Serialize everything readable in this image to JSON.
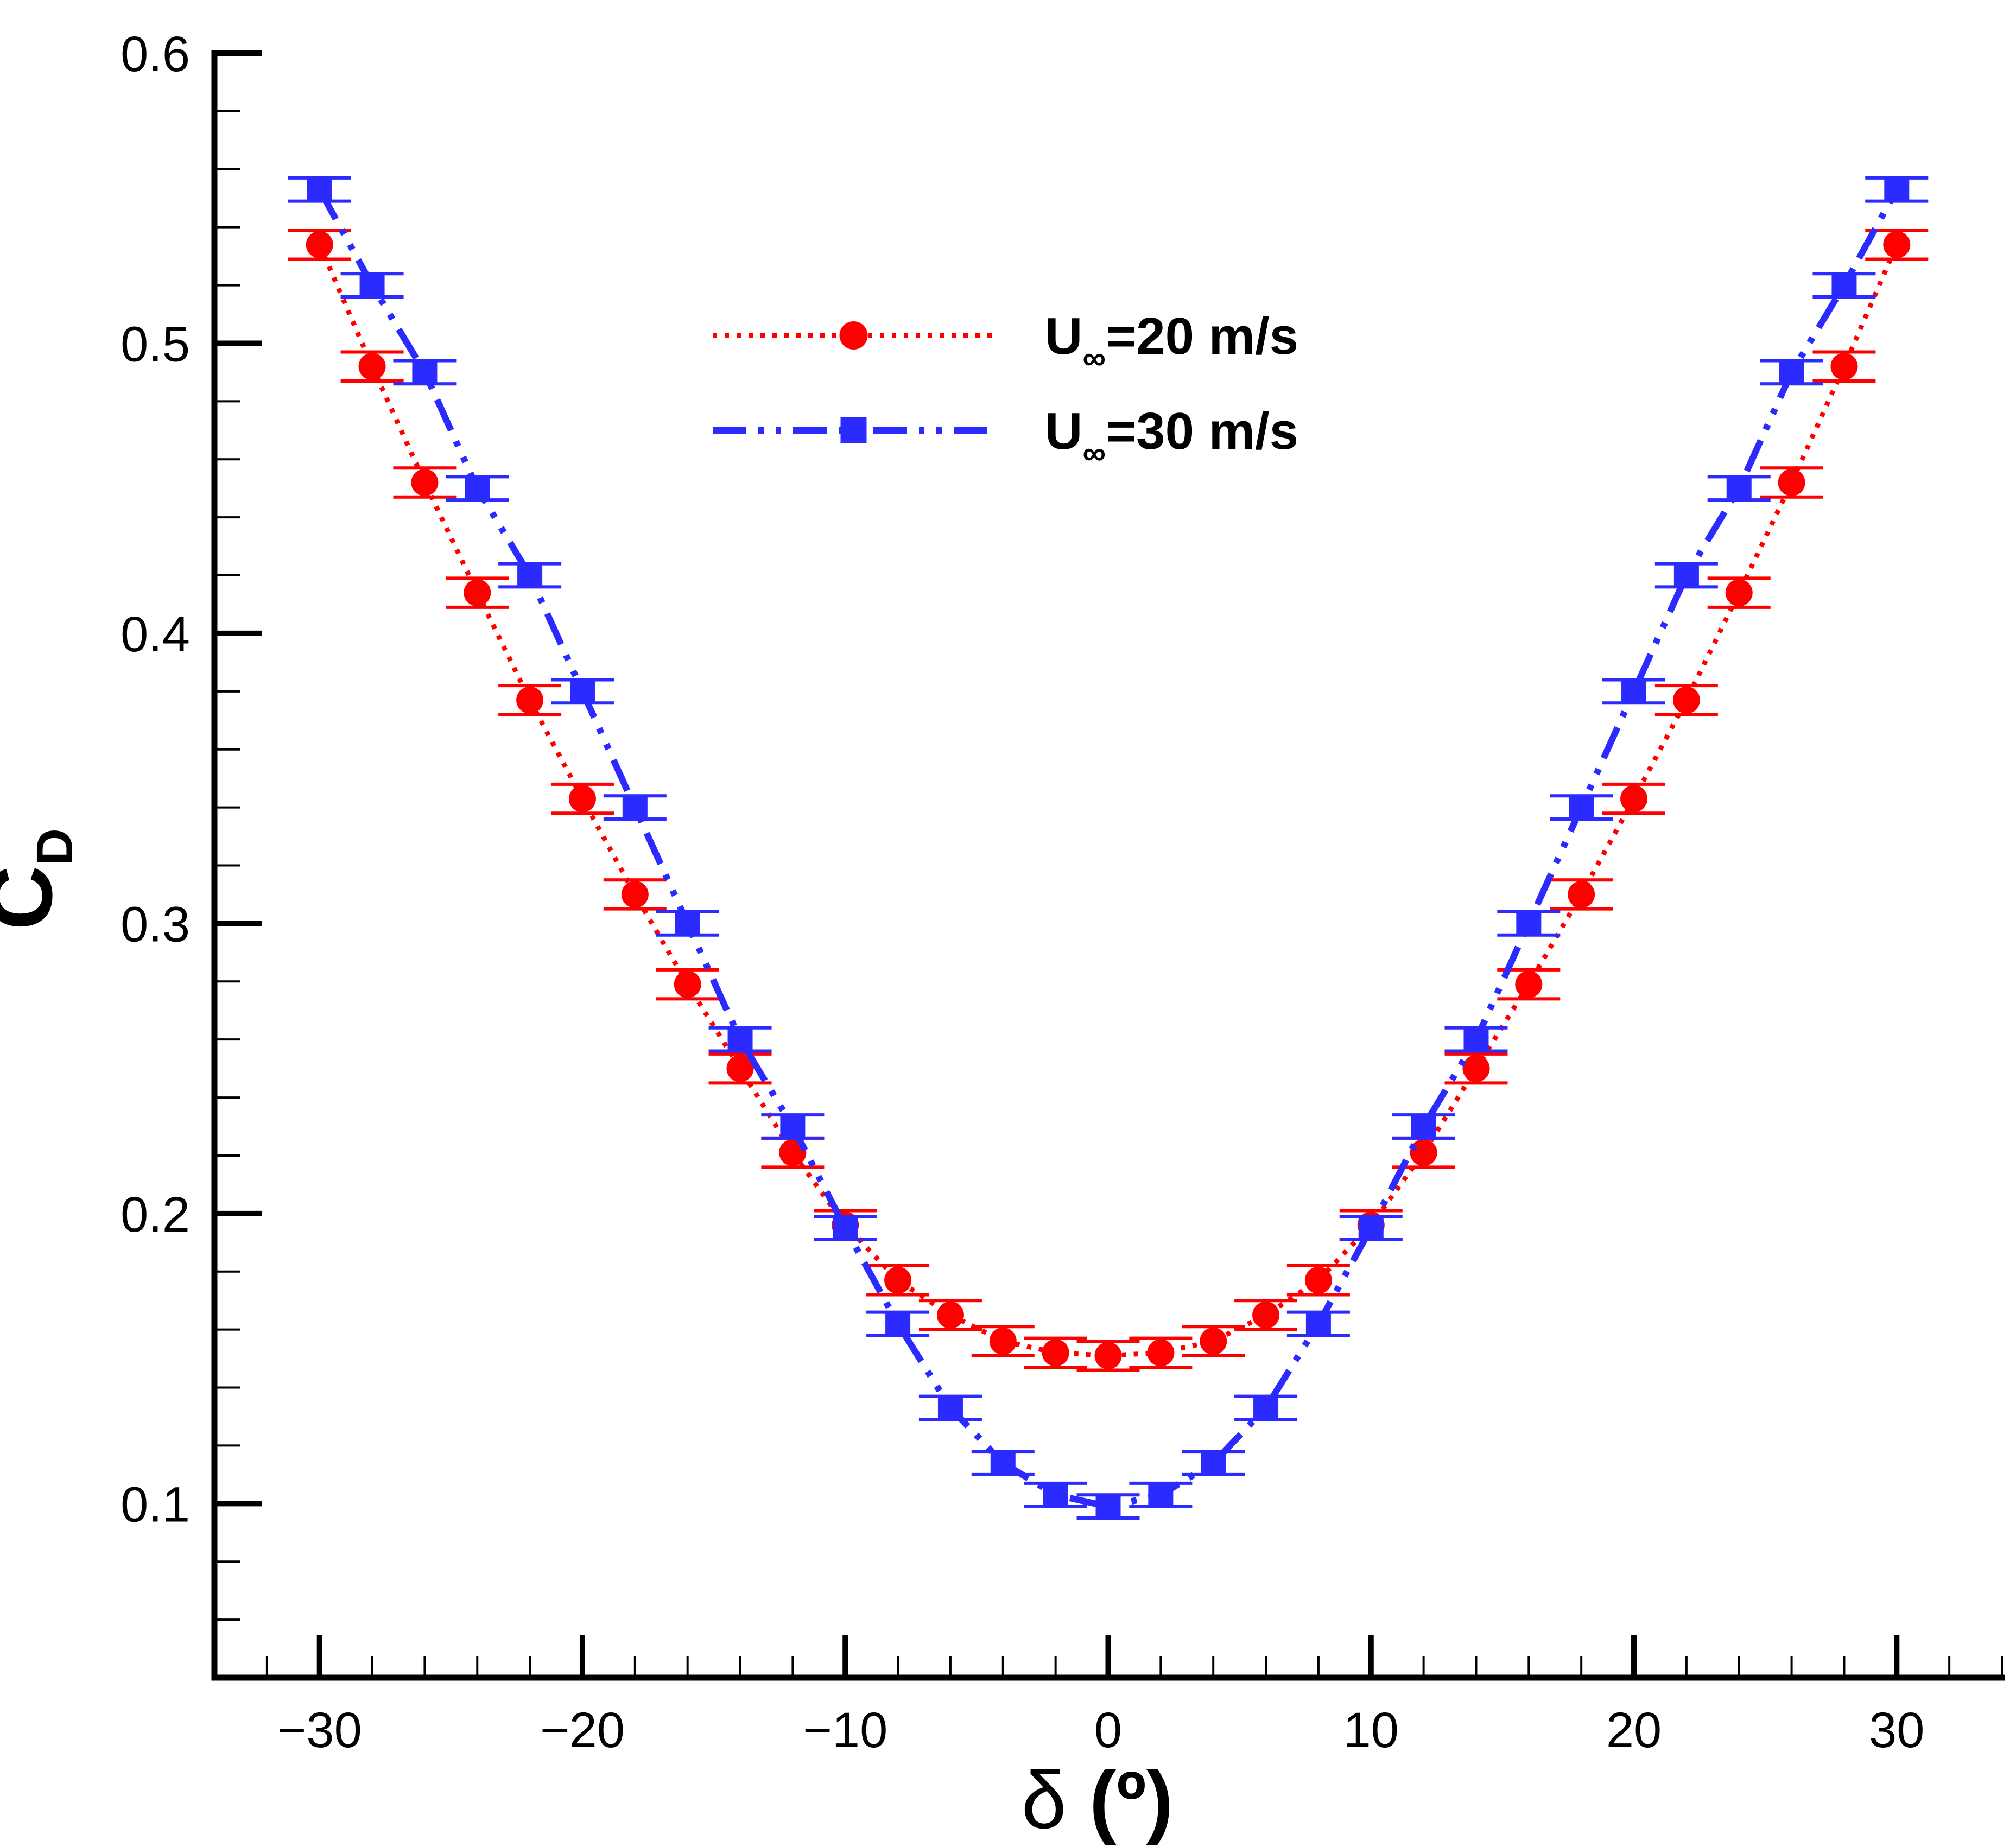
{
  "chart_data": {
    "type": "line",
    "title": "",
    "xlabel": {
      "symbol": "δ",
      "unit": "(º)"
    },
    "ylabel": {
      "base": "C",
      "sub": "D"
    },
    "xlim": [
      -34,
      34
    ],
    "ylim": [
      0.04,
      0.6
    ],
    "x_ticks": [
      -30,
      -20,
      -10,
      0,
      10,
      20,
      30
    ],
    "x_tick_labels": [
      "−30",
      "−20",
      "−10",
      "0",
      "10",
      "20",
      "30"
    ],
    "x_minor_step": 2,
    "y_ticks": [
      0.1,
      0.2,
      0.3,
      0.4,
      0.5,
      0.6
    ],
    "y_tick_labels": [
      "0.1",
      "0.2",
      "0.3",
      "0.4",
      "0.5",
      "0.6"
    ],
    "y_minor_step": 0.02,
    "grid": false,
    "legend_position": "top-center",
    "series": [
      {
        "name": "U∞=20 m/s",
        "legend": {
          "prefix": "U",
          "sub": "∞",
          "suffix": "=20 m/s"
        },
        "color": "#ff0000",
        "line_style": "dotted",
        "marker": "circle",
        "x": [
          -30,
          -28,
          -26,
          -24,
          -22,
          -20,
          -18,
          -16,
          -14,
          -12,
          -10,
          -8,
          -6,
          -4,
          -2,
          0,
          2,
          4,
          6,
          8,
          10,
          12,
          14,
          16,
          18,
          20,
          22,
          24,
          26,
          28,
          30
        ],
        "y": [
          0.534,
          0.492,
          0.452,
          0.414,
          0.377,
          0.343,
          0.31,
          0.279,
          0.25,
          0.221,
          0.196,
          0.177,
          0.165,
          0.156,
          0.152,
          0.151,
          0.152,
          0.156,
          0.165,
          0.177,
          0.196,
          0.221,
          0.25,
          0.279,
          0.31,
          0.343,
          0.377,
          0.414,
          0.452,
          0.492,
          0.534
        ],
        "error": 0.005
      },
      {
        "name": "U∞=30 m/s",
        "legend": {
          "prefix": "U",
          "sub": "∞",
          "suffix": "=30 m/s"
        },
        "color": "#2b2bff",
        "line_style": "dash-dot-dot",
        "marker": "square",
        "x": [
          -30,
          -28,
          -26,
          -24,
          -22,
          -20,
          -18,
          -16,
          -14,
          -12,
          -10,
          -8,
          -6,
          -4,
          -2,
          0,
          2,
          4,
          6,
          8,
          10,
          12,
          14,
          16,
          18,
          20,
          22,
          24,
          26,
          28,
          30
        ],
        "y": [
          0.553,
          0.52,
          0.49,
          0.45,
          0.42,
          0.38,
          0.34,
          0.3,
          0.26,
          0.23,
          0.195,
          0.162,
          0.133,
          0.114,
          0.103,
          0.099,
          0.103,
          0.114,
          0.133,
          0.162,
          0.195,
          0.23,
          0.26,
          0.3,
          0.34,
          0.38,
          0.42,
          0.45,
          0.49,
          0.52,
          0.553
        ],
        "error": 0.004
      }
    ]
  }
}
